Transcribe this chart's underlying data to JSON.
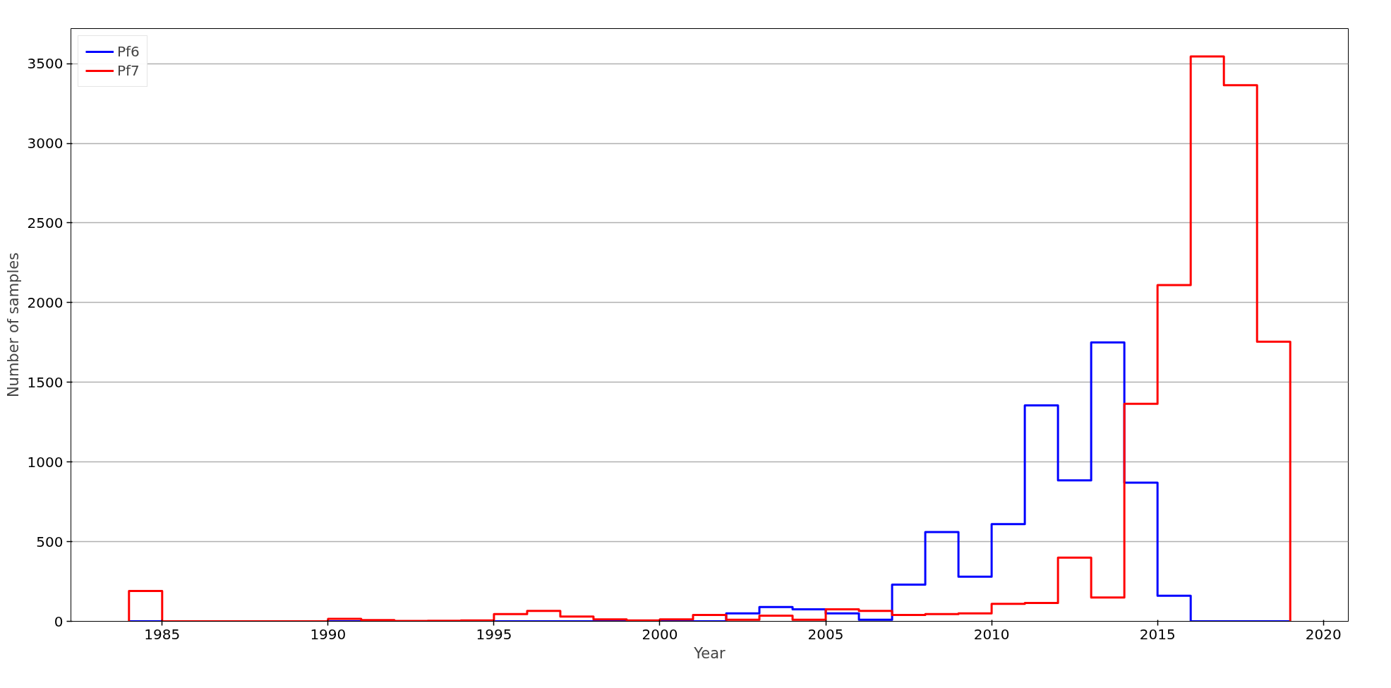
{
  "chart_data": {
    "type": "histogram",
    "xlabel": "Year",
    "ylabel": "Number of samples",
    "bins": [
      1984,
      1985,
      1986,
      1987,
      1988,
      1989,
      1990,
      1991,
      1992,
      1993,
      1994,
      1995,
      1996,
      1997,
      1998,
      1999,
      2000,
      2001,
      2002,
      2003,
      2004,
      2005,
      2006,
      2007,
      2008,
      2009,
      2010,
      2011,
      2012,
      2013,
      2014,
      2015,
      2016,
      2017,
      2018,
      2019
    ],
    "series": [
      {
        "name": "Pf6",
        "color": "#0000ff",
        "values": [
          0,
          0,
          0,
          0,
          0,
          0,
          0,
          0,
          0,
          0,
          0,
          0,
          0,
          0,
          0,
          0,
          0,
          0,
          50,
          90,
          75,
          50,
          10,
          230,
          560,
          280,
          610,
          1355,
          885,
          1750,
          870,
          160,
          0,
          0,
          0
        ]
      },
      {
        "name": "Pf7",
        "color": "#ff0000",
        "values": [
          190,
          0,
          0,
          0,
          0,
          0,
          15,
          8,
          2,
          3,
          5,
          45,
          65,
          30,
          12,
          5,
          12,
          40,
          10,
          35,
          10,
          75,
          65,
          40,
          45,
          50,
          110,
          115,
          400,
          150,
          1365,
          2110,
          3545,
          3365,
          1755
        ]
      }
    ],
    "xlim": [
      1982.25,
      2020.75
    ],
    "ylim": [
      0,
      3720
    ],
    "xticks": [
      1985,
      1990,
      1995,
      2000,
      2005,
      2010,
      2015,
      2020
    ],
    "yticks": [
      0,
      500,
      1000,
      1500,
      2000,
      2500,
      3000,
      3500
    ],
    "grid": "y",
    "legend": "top left"
  }
}
